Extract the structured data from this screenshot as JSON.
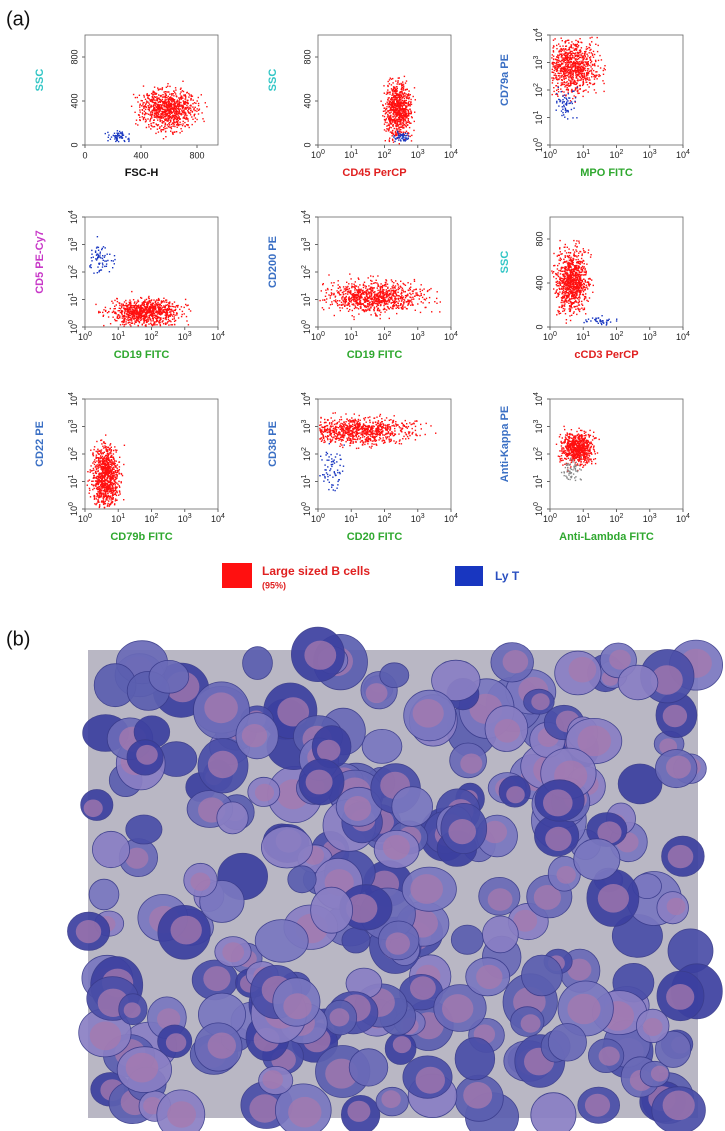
{
  "figure": {
    "panel_a_label": "(a)",
    "panel_b_label": "(b)",
    "log_base": "10",
    "plots": [
      {
        "x_label": "FSC-H",
        "x_label_color": "#111111",
        "y_label": "SSC",
        "y_label_color": "#33c6c6",
        "x_scale": "linear",
        "y_scale": "linear",
        "x_ticks": [
          "0",
          "400",
          "800"
        ],
        "y_ticks": [
          "0",
          "400",
          "800"
        ]
      },
      {
        "x_label": "CD45 PerCP",
        "x_label_color": "#e02020",
        "y_label": "SSC",
        "y_label_color": "#33c6c6",
        "x_scale": "log",
        "y_scale": "linear",
        "x_ticks": [
          "0",
          "1",
          "2",
          "3",
          "4"
        ],
        "y_ticks": [
          "0",
          "400",
          "800"
        ]
      },
      {
        "x_label": "MPO FITC",
        "x_label_color": "#2fa82f",
        "y_label": "CD79a PE",
        "y_label_color": "#3a6fc4",
        "x_scale": "log",
        "y_scale": "log",
        "x_ticks": [
          "0",
          "1",
          "2",
          "3",
          "4"
        ],
        "y_ticks": [
          "0",
          "1",
          "2",
          "3",
          "4"
        ]
      },
      {
        "x_label": "CD19 FITC",
        "x_label_color": "#2fa82f",
        "y_label": "CD5 PE-Cy7",
        "y_label_color": "#c838c8",
        "x_scale": "log",
        "y_scale": "log",
        "x_ticks": [
          "0",
          "1",
          "2",
          "3",
          "4"
        ],
        "y_ticks": [
          "0",
          "1",
          "2",
          "3",
          "4"
        ]
      },
      {
        "x_label": "CD19 FITC",
        "x_label_color": "#2fa82f",
        "y_label": "CD200 PE",
        "y_label_color": "#3a6fc4",
        "x_scale": "log",
        "y_scale": "log",
        "x_ticks": [
          "0",
          "1",
          "2",
          "3",
          "4"
        ],
        "y_ticks": [
          "0",
          "1",
          "2",
          "3",
          "4"
        ]
      },
      {
        "x_label": "cCD3 PerCP",
        "x_label_color": "#e02020",
        "y_label": "SSC",
        "y_label_color": "#33c6c6",
        "x_scale": "log",
        "y_scale": "linear",
        "x_ticks": [
          "0",
          "1",
          "2",
          "3",
          "4"
        ],
        "y_ticks": [
          "0",
          "400",
          "800"
        ]
      },
      {
        "x_label": "CD79b FITC",
        "x_label_color": "#2fa82f",
        "y_label": "CD22 PE",
        "y_label_color": "#3a6fc4",
        "x_scale": "log",
        "y_scale": "log",
        "x_ticks": [
          "0",
          "1",
          "2",
          "3",
          "4"
        ],
        "y_ticks": [
          "0",
          "1",
          "2",
          "3",
          "4"
        ]
      },
      {
        "x_label": "CD20 FITC",
        "x_label_color": "#2fa82f",
        "y_label": "CD38 PE",
        "y_label_color": "#3a6fc4",
        "x_scale": "log",
        "y_scale": "log",
        "x_ticks": [
          "0",
          "1",
          "2",
          "3",
          "4"
        ],
        "y_ticks": [
          "0",
          "1",
          "2",
          "3",
          "4"
        ]
      },
      {
        "x_label": "Anti-Lambda FITC",
        "x_label_color": "#2fa82f",
        "y_label": "Anti-Kappa PE",
        "y_label_color": "#3a6fc4",
        "x_scale": "log",
        "y_scale": "log",
        "x_ticks": [
          "0",
          "1",
          "2",
          "3",
          "4"
        ],
        "y_ticks": [
          "0",
          "1",
          "2",
          "3",
          "4"
        ]
      }
    ],
    "legend": [
      {
        "label": "Large sized B cells",
        "note": "(95%)",
        "color": "#ff1010"
      },
      {
        "label": "Ly T",
        "color": "#1836c0"
      }
    ]
  }
}
